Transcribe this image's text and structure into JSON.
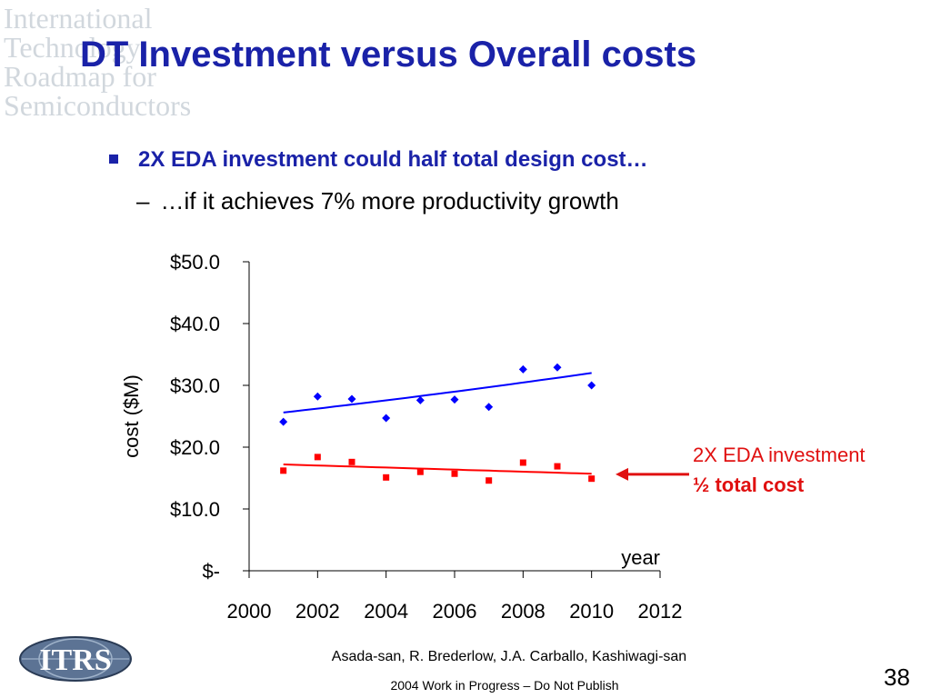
{
  "header": {
    "watermark_lines": [
      "International",
      "Technology",
      "Roadmap for",
      "Semiconductors"
    ],
    "title": "DT Investment versus Overall costs"
  },
  "bullets": {
    "main": "2X EDA investment could half total design cost…",
    "sub_dash": "–",
    "sub": "…if it achieves 7% more productivity growth"
  },
  "chart_data": {
    "type": "scatter",
    "xlabel": "year",
    "ylabel": "cost ($M)",
    "xlim": [
      2000,
      2012
    ],
    "ylim": [
      0,
      50
    ],
    "x_ticks": [
      "2000",
      "2002",
      "2004",
      "2006",
      "2008",
      "2010",
      "2012"
    ],
    "y_ticks": [
      "$-",
      "$10.0",
      "$20.0",
      "$30.0",
      "$40.0",
      "$50.0"
    ],
    "grid": false,
    "series": [
      {
        "marker": "diamond",
        "color": "#0000ff",
        "x": [
          2001,
          2002,
          2003,
          2004,
          2005,
          2006,
          2007,
          2008,
          2009,
          2010
        ],
        "y": [
          24.1,
          28.2,
          27.8,
          24.7,
          27.6,
          27.7,
          26.5,
          32.6,
          32.9,
          30.0
        ],
        "trendline": {
          "x": [
            2001,
            2010
          ],
          "y": [
            25.6,
            32.0
          ],
          "curve": "exponential"
        }
      },
      {
        "marker": "square",
        "color": "#ff0000",
        "x": [
          2001,
          2002,
          2003,
          2004,
          2005,
          2006,
          2007,
          2008,
          2009,
          2010
        ],
        "y": [
          16.2,
          18.4,
          17.6,
          15.1,
          16.0,
          15.7,
          14.6,
          17.5,
          16.9,
          14.9
        ],
        "trendline": {
          "x": [
            2001,
            2010
          ],
          "y": [
            17.2,
            15.7
          ],
          "curve": "linear"
        }
      }
    ],
    "annotation": {
      "line1": "2X EDA investment",
      "line2": "½ total cost",
      "arrow_to": {
        "x": 2010.7,
        "y": 15.6
      },
      "color": "#e01010"
    }
  },
  "footer": {
    "authors": "Asada-san, R. Brederlow, J.A. Carballo, Kashiwagi-san",
    "note": "2004 Work in Progress – Do Not Publish",
    "page_number": "38",
    "logo_text": "ITRS"
  }
}
